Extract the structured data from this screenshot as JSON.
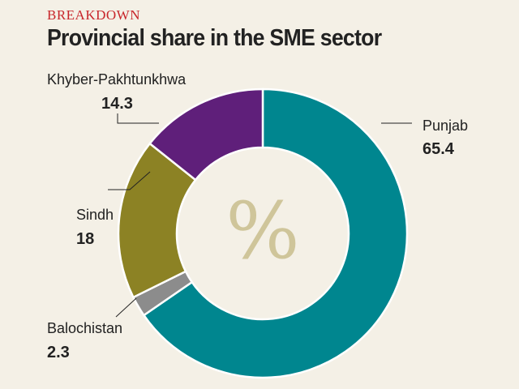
{
  "header": {
    "kicker": "BREAKDOWN",
    "title": "Provincial share in the SME sector"
  },
  "chart_data": {
    "type": "pie",
    "donut": true,
    "center_label": "%",
    "slices": [
      {
        "name": "Punjab",
        "value": 65.4,
        "value_label": "65.4",
        "color": "#00868f"
      },
      {
        "name": "Balochistan",
        "value": 2.3,
        "value_label": "2.3",
        "color": "#8c8c8c"
      },
      {
        "name": "Sindh",
        "value": 18,
        "value_label": "18",
        "color": "#8c8224"
      },
      {
        "name": "Khyber-Pakhtunkhwa",
        "value": 14.3,
        "value_label": "14.3",
        "color": "#5f1f7a"
      }
    ]
  }
}
